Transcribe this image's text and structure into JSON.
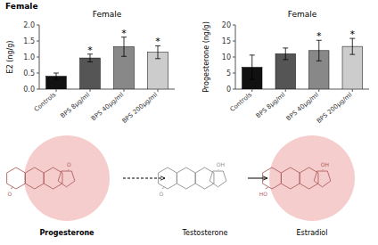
{
  "title": "Female",
  "chart_data": [
    {
      "type": "bar",
      "title": "Female",
      "categories": [
        "Controls",
        "BPS 8μg/ml",
        "BPS 40μg/ml",
        "BPS 200μg/ml"
      ],
      "values": [
        0.4,
        0.97,
        1.32,
        1.15
      ],
      "errors": [
        0.1,
        0.12,
        0.3,
        0.2
      ],
      "colors": [
        "#111111",
        "#555555",
        "#888888",
        "#cccccc"
      ],
      "y_label": "E2 (ng/g)",
      "ylim": [
        0,
        2.0
      ],
      "yticks": [
        {
          "value": 0,
          "label": "0.0"
        },
        0.5,
        {
          "value": 1,
          "label": "1.0"
        },
        1.5,
        {
          "value": 2,
          "label": "2.0"
        }
      ],
      "annotations": [
        {
          "text": "*",
          "x": "BPS 8μg/ml"
        },
        {
          "text": "*",
          "x": "BPS 40μg/ml"
        },
        {
          "text": "*",
          "x": "BPS 200μg/ml"
        }
      ]
    },
    {
      "type": "bar",
      "title": "Female",
      "categories": [
        "Controls",
        "BPS 8μg/ml",
        "BPS 40μg/ml",
        "BPS 200μg/ml"
      ],
      "values": [
        6.8,
        11.0,
        12.0,
        13.3
      ],
      "errors": [
        3.8,
        1.8,
        3.2,
        2.5
      ],
      "colors": [
        "#111111",
        "#555555",
        "#888888",
        "#cccccc"
      ],
      "y_label": "Progesterone (ng/g)",
      "ylim": [
        0,
        20
      ],
      "yticks": [
        0,
        5,
        10,
        15,
        20
      ],
      "annotations": [
        {
          "text": "*",
          "x": "BPS 40μg/ml"
        },
        {
          "text": "*",
          "x": "BPS 200μg/ml"
        }
      ]
    }
  ],
  "annotations": [
    {
      "text": "Progesterone",
      "atoms": [
        "O",
        "O"
      ],
      "colors": [
        "#b06060",
        "#f2b8b8"
      ]
    },
    {
      "text": "Testosterone",
      "atoms": [
        "OH",
        "O"
      ],
      "color": "#909090"
    },
    {
      "text": "Estradiol",
      "atoms": [
        "OH",
        "HO"
      ],
      "colors": [
        "#b06060",
        "#f2b8b8"
      ]
    }
  ]
}
